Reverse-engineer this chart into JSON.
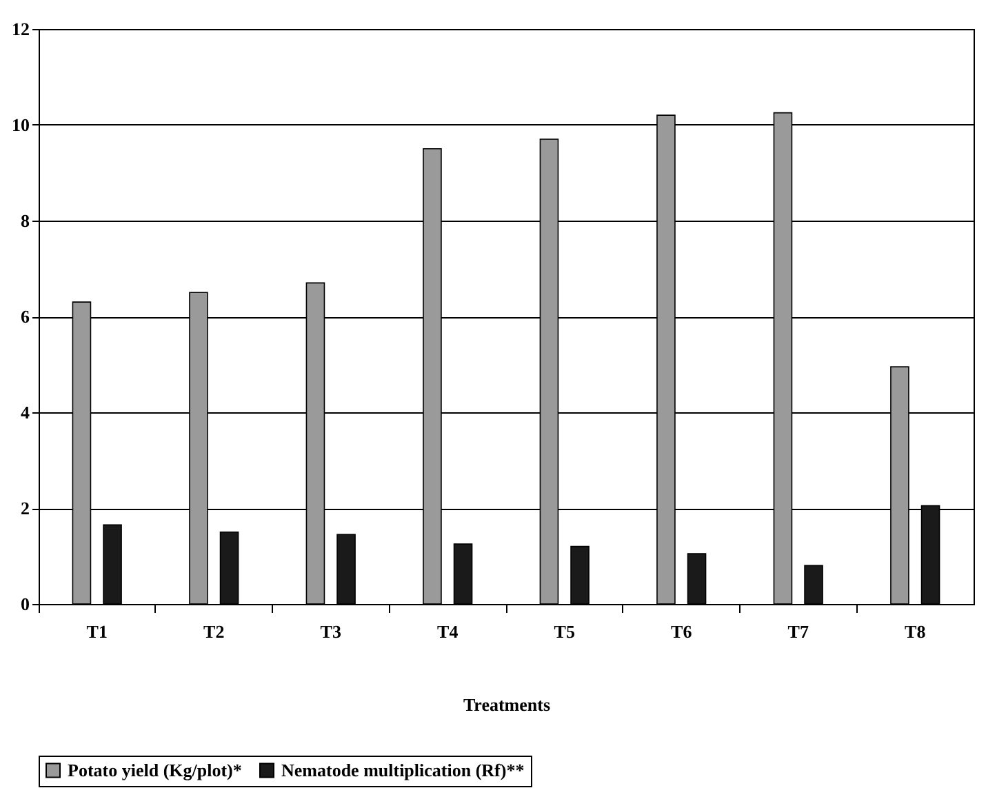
{
  "chart_data": {
    "type": "bar",
    "xlabel": "Treatments",
    "categories": [
      "T1",
      "T2",
      "T3",
      "T4",
      "T5",
      "T6",
      "T7",
      "T8"
    ],
    "series": [
      {
        "name": "Potato yield (Kg/plot)*",
        "color": "#9a9a9a",
        "values": [
          6.3,
          6.5,
          6.7,
          9.5,
          9.7,
          10.2,
          10.25,
          4.95
        ]
      },
      {
        "name": "Nematode multiplication (Rf)**",
        "color": "#1a1a1a",
        "values": [
          1.65,
          1.5,
          1.45,
          1.25,
          1.2,
          1.05,
          0.8,
          2.05
        ]
      }
    ],
    "ylim": [
      0,
      12
    ],
    "yticks": [
      0,
      2,
      4,
      6,
      8,
      10,
      12
    ],
    "grid": "y",
    "legend": "bottom"
  }
}
